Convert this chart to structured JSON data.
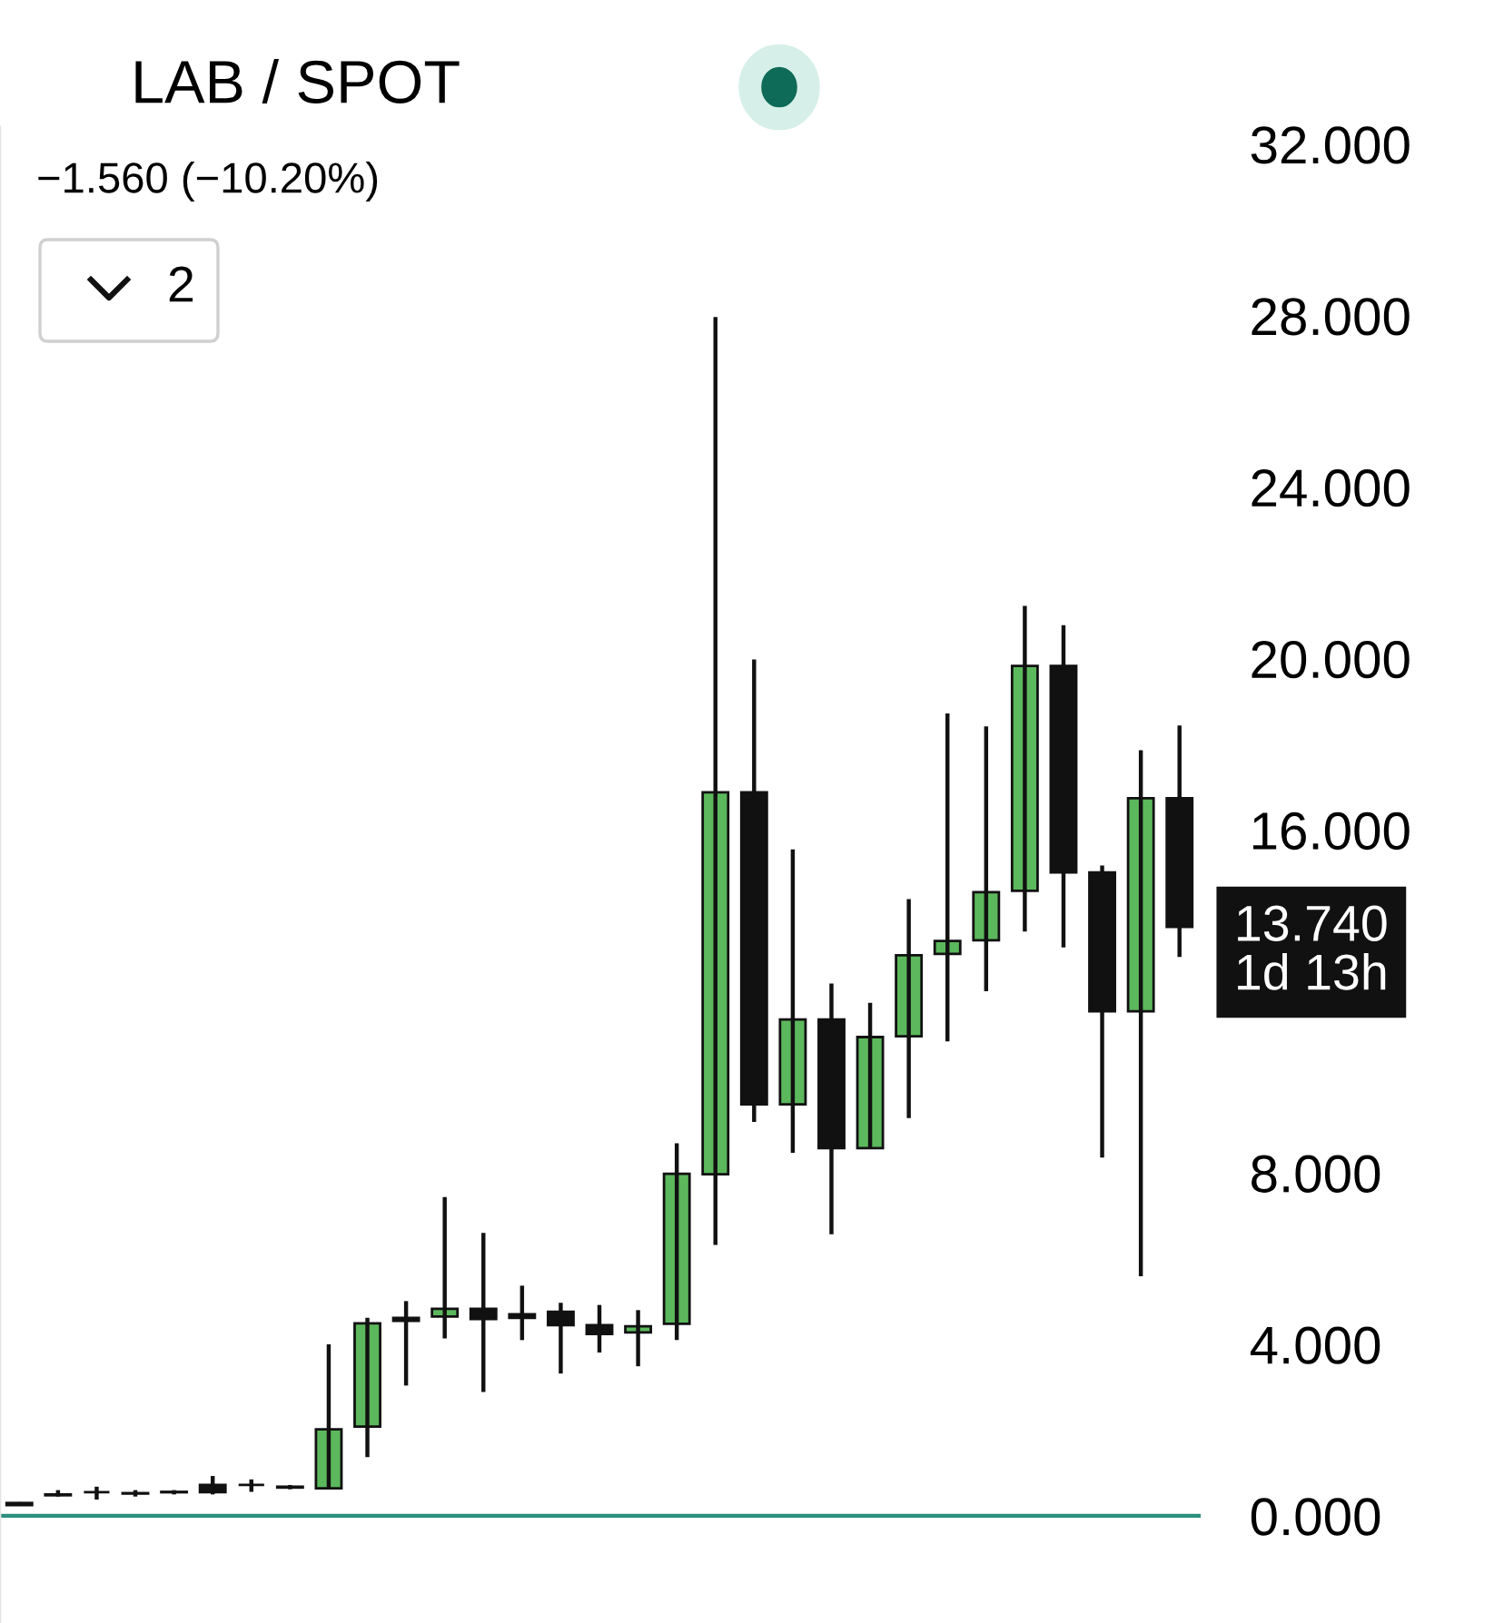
{
  "chart_data": {
    "type": "candlestick",
    "title": "LAB / SPOT",
    "subtitle": "−1.560 (−10.20%)",
    "categories": [
      null,
      null,
      null,
      null,
      null,
      null,
      null,
      null,
      null,
      null,
      null,
      null,
      null,
      null,
      null,
      null,
      null,
      null,
      null,
      null,
      null,
      null,
      null,
      null,
      null,
      null,
      null,
      null,
      null,
      null,
      null
    ],
    "ohlc": [
      [
        0.3,
        0.32,
        0.25,
        0.25
      ],
      [
        0.48,
        0.6,
        0.45,
        0.5
      ],
      [
        0.55,
        0.68,
        0.38,
        0.55
      ],
      [
        0.53,
        0.6,
        0.45,
        0.52
      ],
      [
        0.55,
        0.6,
        0.5,
        0.56
      ],
      [
        0.72,
        0.93,
        0.5,
        0.55
      ],
      [
        0.72,
        0.85,
        0.56,
        0.72
      ],
      [
        0.68,
        0.72,
        0.62,
        0.66
      ],
      [
        0.64,
        4.0,
        0.64,
        2.02
      ],
      [
        2.08,
        4.62,
        1.37,
        4.49
      ],
      [
        4.62,
        5.01,
        3.04,
        4.55
      ],
      [
        4.65,
        7.44,
        4.14,
        4.83
      ],
      [
        4.83,
        6.6,
        2.89,
        4.59
      ],
      [
        4.7,
        5.37,
        4.1,
        4.62
      ],
      [
        4.76,
        4.97,
        3.32,
        4.45
      ],
      [
        4.45,
        4.92,
        3.81,
        4.24
      ],
      [
        4.28,
        4.8,
        3.49,
        4.42
      ],
      [
        4.48,
        8.69,
        4.1,
        7.98
      ],
      [
        7.97,
        27.97,
        6.32,
        16.88
      ],
      [
        16.88,
        19.98,
        9.19,
        9.6
      ],
      [
        9.6,
        15.55,
        8.47,
        11.58
      ],
      [
        11.58,
        12.42,
        6.57,
        8.58
      ],
      [
        8.58,
        11.97,
        8.58,
        11.17
      ],
      [
        11.19,
        14.39,
        9.28,
        13.08
      ],
      [
        13.11,
        18.72,
        11.07,
        13.41
      ],
      [
        13.43,
        18.42,
        12.24,
        14.55
      ],
      [
        14.58,
        21.23,
        13.63,
        19.83
      ],
      [
        19.83,
        20.78,
        13.26,
        15.01
      ],
      [
        15.01,
        15.17,
        8.36,
        11.77
      ],
      [
        11.77,
        17.86,
        5.59,
        16.74
      ],
      [
        16.74,
        18.44,
        13.04,
        13.74
      ]
    ],
    "colors": [
      "#111111",
      "#111111",
      "#111111",
      "#111111",
      "#111111",
      "#111111",
      "#111111",
      "#111111",
      "#5cb85c",
      "#5cb85c",
      "#111111",
      "#5cb85c",
      "#111111",
      "#111111",
      "#111111",
      "#111111",
      "#5cb85c",
      "#5cb85c",
      "#5cb85c",
      "#111111",
      "#5cb85c",
      "#111111",
      "#5cb85c",
      "#5cb85c",
      "#5cb85c",
      "#5cb85c",
      "#5cb85c",
      "#111111",
      "#111111",
      "#5cb85c",
      "#111111"
    ],
    "ylim": [
      -2.5,
      32.4
    ],
    "yticks": [
      {
        "value": 0,
        "label": "0.000"
      },
      {
        "value": 4,
        "label": "4.000"
      },
      {
        "value": 8,
        "label": "8.000"
      },
      {
        "value": 16,
        "label": "16.000"
      },
      {
        "value": 20,
        "label": "20.000"
      },
      {
        "value": 24,
        "label": "24.000"
      },
      {
        "value": 28,
        "label": "28.000"
      },
      {
        "value": 32,
        "label": "32.000"
      }
    ],
    "tick_labels": "y",
    "grid": false,
    "ref_lines": [
      {
        "axis": "y",
        "value": 0,
        "color": "#2a8f7f"
      }
    ],
    "annotations": [
      "13.740",
      "1d 13h",
      "2"
    ]
  }
}
